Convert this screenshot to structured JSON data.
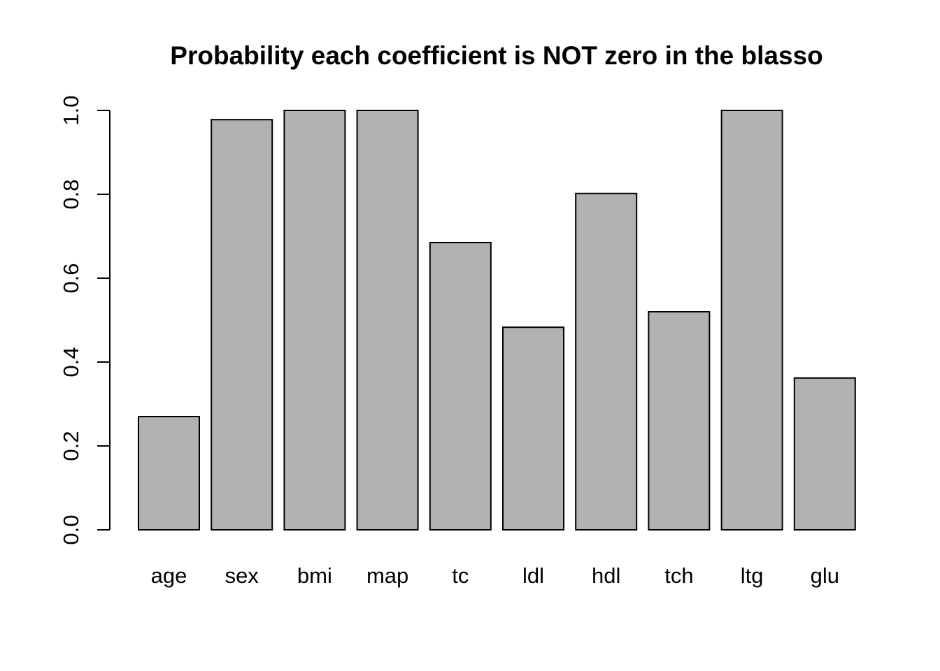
{
  "chart_data": {
    "type": "bar",
    "title": "Probability each coefficient is NOT zero in the blasso",
    "xlabel": "",
    "ylabel": "",
    "categories": [
      "age",
      "sex",
      "bmi",
      "map",
      "tc",
      "ldl",
      "hdl",
      "tch",
      "ltg",
      "glu"
    ],
    "values": [
      0.27,
      0.978,
      1.0,
      1.0,
      0.685,
      0.483,
      0.802,
      0.52,
      1.0,
      0.362
    ],
    "ylim": [
      0,
      1
    ],
    "yticks": [
      "0.0",
      "0.2",
      "0.4",
      "0.6",
      "0.8",
      "1.0"
    ],
    "grid": false,
    "legend": "none",
    "bar_color": "#b2b2b2",
    "border_color": "#000000"
  }
}
